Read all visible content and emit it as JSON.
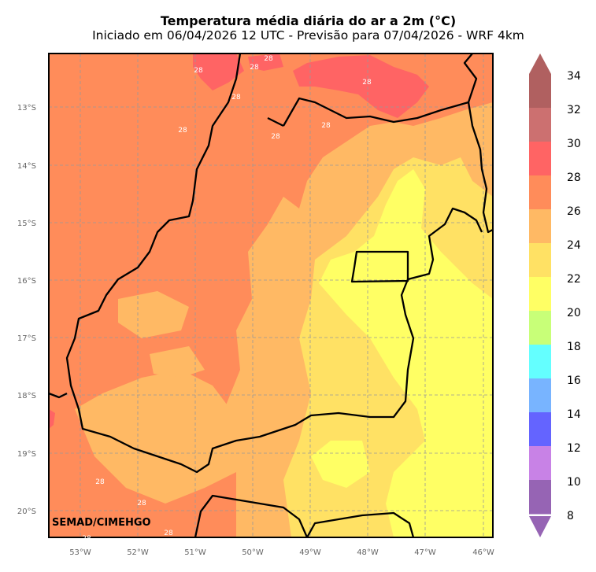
{
  "title": "Temperatura média diária do ar a 2m (°C)",
  "subtitle": "Iniciado em 06/04/2026 12 UTC - Previsão para 07/04/2026 - WRF 4km",
  "lat_labels": [
    "13°S",
    "14°S",
    "15°S",
    "16°S",
    "17°S",
    "18°S",
    "19°S",
    "20°S"
  ],
  "lon_labels": [
    "53°W",
    "52°W",
    "51°W",
    "50°W",
    "49°W",
    "48°W",
    "47°W",
    "46°W"
  ],
  "colorbar": {
    "labels": [
      "34",
      "32",
      "30",
      "28",
      "26",
      "24",
      "22",
      "20",
      "18",
      "16",
      "14",
      "12",
      "10",
      "8"
    ],
    "colors": [
      "#b06060",
      "#cc7070",
      "#ff6464",
      "#ff8c5a",
      "#ffb964",
      "#ffe164",
      "#ffff64",
      "#c8ff78",
      "#64ffff",
      "#78b4ff",
      "#6464ff",
      "#c882e6",
      "#9664b4"
    ]
  },
  "contour_labels": [
    "28",
    "28",
    "28",
    "28",
    "28",
    "28",
    "28",
    "28",
    "28",
    "28",
    "28",
    "28"
  ],
  "brand": "SEMAD/CIMEHGO"
}
